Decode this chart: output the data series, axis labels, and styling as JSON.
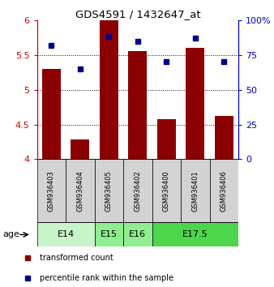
{
  "title": "GDS4591 / 1432647_at",
  "samples": [
    "GSM936403",
    "GSM936404",
    "GSM936405",
    "GSM936402",
    "GSM936400",
    "GSM936401",
    "GSM936406"
  ],
  "bar_values": [
    5.3,
    4.28,
    6.0,
    5.56,
    4.58,
    5.6,
    4.62
  ],
  "percentile_values": [
    82,
    65,
    88,
    85,
    70,
    87,
    70
  ],
  "bar_bottom": 4.0,
  "ylim_left": [
    4.0,
    6.0
  ],
  "ylim_right": [
    0,
    100
  ],
  "yticks_left": [
    4.0,
    4.5,
    5.0,
    5.5,
    6.0
  ],
  "ytick_labels_left": [
    "4",
    "4.5",
    "5",
    "5.5",
    "6"
  ],
  "yticks_right": [
    0,
    25,
    50,
    75,
    100
  ],
  "ytick_labels_right": [
    "0",
    "25",
    "50",
    "75",
    "100%"
  ],
  "bar_color": "#8B0000",
  "dot_color": "#00008B",
  "left_axis_color": "#CC0000",
  "right_axis_color": "#0000CC",
  "dotted_lines": [
    4.5,
    5.0,
    5.5
  ],
  "age_groups": [
    {
      "label": "E14",
      "samples": [
        0,
        1
      ],
      "color": "#c8f5c8"
    },
    {
      "label": "E15",
      "samples": [
        2
      ],
      "color": "#90ee90"
    },
    {
      "label": "E16",
      "samples": [
        3
      ],
      "color": "#90ee90"
    },
    {
      "label": "E17.5",
      "samples": [
        4,
        5,
        6
      ],
      "color": "#4cd64c"
    }
  ],
  "legend_red_label": "transformed count",
  "legend_blue_label": "percentile rank within the sample",
  "background_color": "#ffffff",
  "sample_box_color": "#d3d3d3"
}
